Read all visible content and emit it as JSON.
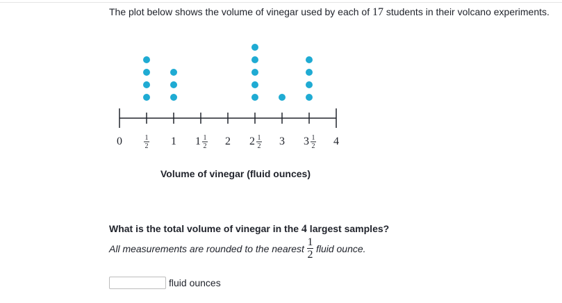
{
  "intro": {
    "before": "The plot below shows the volume of vinegar used by each of ",
    "count": "17",
    "after": " students in their volcano experiments."
  },
  "chart_data": {
    "type": "dot",
    "xlabel": "Volume of vinegar (fluid ounces)",
    "xlim": [
      0,
      4
    ],
    "ticks": [
      {
        "value": 0,
        "whole": "0",
        "num": "",
        "den": ""
      },
      {
        "value": 0.5,
        "whole": "",
        "num": "1",
        "den": "2"
      },
      {
        "value": 1,
        "whole": "1",
        "num": "",
        "den": ""
      },
      {
        "value": 1.5,
        "whole": "1",
        "num": "1",
        "den": "2"
      },
      {
        "value": 2,
        "whole": "2",
        "num": "",
        "den": ""
      },
      {
        "value": 2.5,
        "whole": "2",
        "num": "1",
        "den": "2"
      },
      {
        "value": 3,
        "whole": "3",
        "num": "",
        "den": ""
      },
      {
        "value": 3.5,
        "whole": "3",
        "num": "1",
        "den": "2"
      },
      {
        "value": 4,
        "whole": "4",
        "num": "",
        "den": ""
      }
    ],
    "points": [
      {
        "x": 0.5,
        "count": 4
      },
      {
        "x": 1,
        "count": 3
      },
      {
        "x": 2.5,
        "count": 5
      },
      {
        "x": 3,
        "count": 1
      },
      {
        "x": 3.5,
        "count": 4
      }
    ],
    "dot_color": "#1fabd3"
  },
  "question": {
    "before": "What is the total volume of vinegar in the ",
    "number": "4",
    "after": " largest samples?"
  },
  "note": {
    "before": "All measurements are rounded to the nearest ",
    "frac_num": "1",
    "frac_den": "2",
    "after": " fluid ounce."
  },
  "answer": {
    "value": "",
    "unit": "fluid ounces"
  }
}
